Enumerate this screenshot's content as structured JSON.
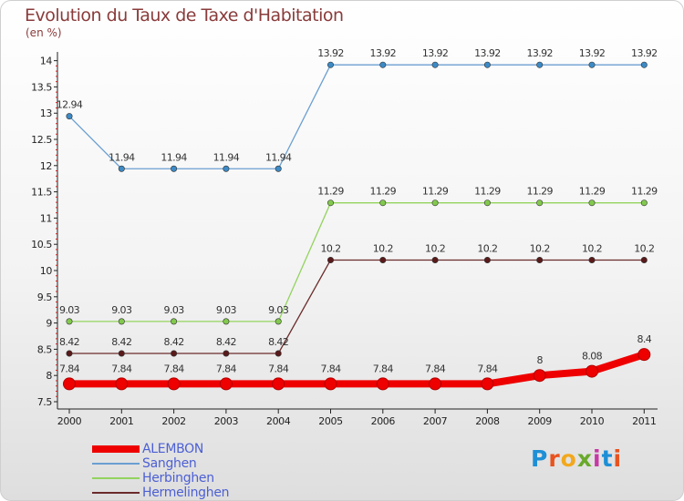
{
  "chart_data": {
    "type": "line",
    "title": "Evolution du Taux de Taxe d'Habitation",
    "unit_label": "(en %)",
    "x": [
      "2000",
      "2001",
      "2002",
      "2003",
      "2004",
      "2005",
      "2006",
      "2007",
      "2008",
      "2009",
      "2010",
      "2011"
    ],
    "ylim": [
      7.5,
      14
    ],
    "yticks": [
      "7.5",
      "8",
      "8.5",
      "9",
      "9.5",
      "10",
      "10.5",
      "11",
      "11.5",
      "12",
      "12.5",
      "13",
      "13.5",
      "14"
    ],
    "series": [
      {
        "name": "ALEMBON",
        "color": "#ee0000",
        "emphasis": true,
        "values": [
          7.84,
          7.84,
          7.84,
          7.84,
          7.84,
          7.84,
          7.84,
          7.84,
          7.84,
          8,
          8.08,
          8.4
        ],
        "labels": [
          "7.84",
          "7.84",
          "7.84",
          "7.84",
          "7.84",
          "7.84",
          "7.84",
          "7.84",
          "7.84",
          "8",
          "8.08",
          "8.4"
        ]
      },
      {
        "name": "Sanghen",
        "color": "#6b9fd1",
        "marker_color": "#3c8ac6",
        "values": [
          12.94,
          11.94,
          11.94,
          11.94,
          11.94,
          13.92,
          13.92,
          13.92,
          13.92,
          13.92,
          13.92,
          13.92
        ],
        "labels": [
          "12.94",
          "11.94",
          "11.94",
          "11.94",
          "11.94",
          "13.92",
          "13.92",
          "13.92",
          "13.92",
          "13.92",
          "13.92",
          "13.92"
        ]
      },
      {
        "name": "Herbinghen",
        "color": "#93d35e",
        "marker_color": "#82c94d",
        "values": [
          9.03,
          9.03,
          9.03,
          9.03,
          9.03,
          11.29,
          11.29,
          11.29,
          11.29,
          11.29,
          11.29,
          11.29
        ],
        "labels": [
          "9.03",
          "9.03",
          "9.03",
          "9.03",
          "9.03",
          "11.29",
          "11.29",
          "11.29",
          "11.29",
          "11.29",
          "11.29",
          "11.29"
        ]
      },
      {
        "name": "Hermelinghen",
        "color": "#6b2b2b",
        "marker_color": "#5a1a1a",
        "values": [
          8.42,
          8.42,
          8.42,
          8.42,
          8.42,
          10.2,
          10.2,
          10.2,
          10.2,
          10.2,
          10.2,
          10.2
        ],
        "labels": [
          "8.42",
          "8.42",
          "8.42",
          "8.42",
          "8.42",
          "10.2",
          "10.2",
          "10.2",
          "10.2",
          "10.2",
          "10.2",
          "10.2"
        ]
      }
    ]
  },
  "logo": {
    "text": "Proxiti",
    "letter_colors": [
      "#1e8fd6",
      "#e8531e",
      "#f2a81d",
      "#6aa92b",
      "#c63aa4",
      "#1e8fd6",
      "#e8531e"
    ]
  }
}
